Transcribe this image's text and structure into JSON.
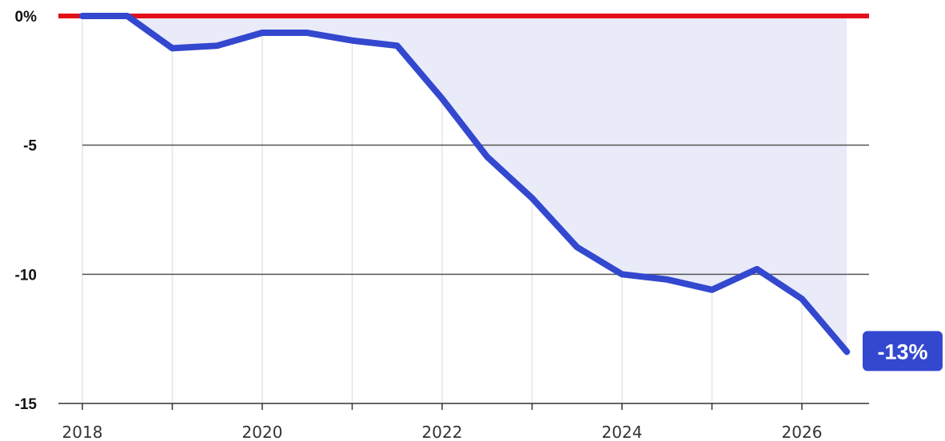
{
  "chart_data": {
    "type": "area",
    "title": "",
    "xlabel": "",
    "ylabel": "",
    "x": [
      2018,
      2018.5,
      2019,
      2019.5,
      2020,
      2020.5,
      2021,
      2021.5,
      2022,
      2022.5,
      2023,
      2023.5,
      2024,
      2024.5,
      2025,
      2025.5,
      2026,
      2026.5
    ],
    "series": [
      {
        "values": [
          0,
          0,
          -1.25,
          -1.15,
          -0.65,
          -0.65,
          -0.95,
          -1.15,
          -3.2,
          -5.45,
          -7.05,
          -8.95,
          -10.0,
          -10.2,
          -10.6,
          -9.8,
          -10.95,
          -13.0
        ]
      }
    ],
    "end_label": "-13%",
    "reference_line": {
      "value": 0
    },
    "xlim": [
      2018,
      2026.7
    ],
    "ylim": [
      -15,
      0
    ],
    "x_ticks": [
      {
        "value": 2018,
        "label": "2018"
      },
      {
        "value": 2020,
        "label": "2020"
      },
      {
        "value": 2022,
        "label": "2022"
      },
      {
        "value": 2024,
        "label": "2024"
      },
      {
        "value": 2026,
        "label": "2026"
      }
    ],
    "y_ticks": [
      {
        "value": 0,
        "label": "0%"
      },
      {
        "value": -5,
        "label": "-5"
      },
      {
        "value": -10,
        "label": "-10"
      },
      {
        "value": -15,
        "label": "-15"
      }
    ],
    "grid": true,
    "colors": {
      "line": "#3348CF",
      "fill": "#E9EBF9",
      "reference": "#E3101A",
      "gridline": "#555555",
      "vgrid": "#E6E6E6",
      "label_bg": "#3348CF"
    }
  }
}
